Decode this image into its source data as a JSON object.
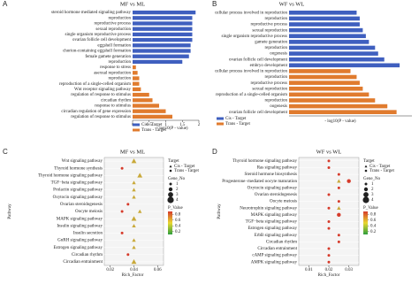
{
  "chart_data": [
    {
      "type": "bar",
      "panel": "A",
      "title": "MF vs ML",
      "x_label": "- log10(P - value)",
      "categories": [
        "steroid hormone mediated signaling pathway",
        "reproduction",
        "reproductive process",
        "sexual reproduction",
        "single organism reproductive process",
        "ovarian follicle cell development",
        "eggshell formation",
        "chorion-containing eggshell formation",
        "female gamete generation",
        "reproduction",
        "response to stress",
        "asexual reproduction",
        "reproduction",
        "reproduction of a single-celled organism",
        "Wnt receptor signaling pathway",
        "regulation of response to stimulus",
        "circadian rhythm",
        "response to stimulus",
        "circadian regulation of gene expression",
        "regulation of response to stimulus"
      ],
      "series": [
        {
          "name": "Cis - Target",
          "color": "#3f5fbf",
          "values": [
            1.9,
            1.8,
            1.8,
            1.8,
            1.8,
            1.8,
            1.75,
            1.75,
            1.7,
            1.5,
            null,
            null,
            null,
            null,
            null,
            null,
            null,
            null,
            null,
            null
          ]
        },
        {
          "name": "Trans - Target",
          "color": "#e07b2e",
          "values": [
            null,
            null,
            null,
            null,
            null,
            null,
            null,
            null,
            null,
            null,
            0.1,
            0.15,
            0.2,
            0.2,
            0.25,
            0.5,
            0.6,
            0.8,
            1.0,
            1.2
          ]
        }
      ],
      "xlim": [
        0,
        2
      ],
      "xticks": [
        0,
        0.5,
        1,
        1.5,
        2
      ]
    },
    {
      "type": "bar",
      "panel": "B",
      "title": "WF vs WL",
      "x_label": "- log10(P - value)",
      "categories": [
        "cellular process involved in reproduction",
        "reproduction",
        "reproductive process",
        "sexual reproduction",
        "single organism reproductive process",
        "gamete generation",
        "reproduction",
        "oogenesis",
        "ovarian follicle cell development",
        "embryo development",
        "cellular process involved in reproduction",
        "reproduction",
        "reproductive process",
        "sexual reproduction",
        "reproduction of a single-celled organism",
        "reproduction",
        "oogenesis",
        "ovarian follicle cell development"
      ],
      "series": [
        {
          "name": "Cis - Target",
          "color": "#3f5fbf",
          "values": [
            2.2,
            2.3,
            2.3,
            2.4,
            2.5,
            2.6,
            2.8,
            2.9,
            3.1,
            3.6,
            null,
            null,
            null,
            null,
            null,
            null,
            null,
            null
          ]
        },
        {
          "name": "Trans - Target",
          "color": "#e07b2e",
          "values": [
            null,
            null,
            null,
            null,
            null,
            null,
            null,
            null,
            null,
            null,
            2.0,
            2.2,
            2.3,
            2.4,
            2.6,
            2.8,
            3.2,
            3.5
          ]
        }
      ],
      "xlim": [
        0,
        4
      ]
    },
    {
      "type": "scatter",
      "panel": "C",
      "title": "MF vs ML",
      "x_label": "Rich_Factor",
      "y_label": "Pathway",
      "categories": [
        "Wnt signaling pathway",
        "Thyroid hormone synthesis",
        "Thyroid hormone signaling pathway",
        "TGF−beta signaling pathway",
        "Prolactin signaling pathway",
        "Oxytocin signaling pathway",
        "Ovarian steroidogenesis",
        "Oocyte meiosis",
        "MAPK signaling pathway",
        "Insulin signaling pathway",
        "Insulin secretion",
        "GnRH signaling pathway",
        "Estrogen signaling pathway",
        "Circadian rhythm",
        "Circadian entrainment"
      ],
      "series": [
        {
          "name": "Cis - Target",
          "shape": "triangle",
          "color": "#c9a93a",
          "values": [
            0.04,
            null,
            0.045,
            0.04,
            0.04,
            0.04,
            null,
            0.045,
            0.04,
            0.04,
            null,
            0.04,
            0.04,
            null,
            0.04
          ],
          "sizes": [
            3,
            null,
            3,
            2,
            2,
            2,
            null,
            2,
            3,
            2,
            null,
            2,
            2,
            null,
            3
          ]
        },
        {
          "name": "Trans - Target",
          "shape": "circle",
          "color": "#d63b2b",
          "values": [
            null,
            0.03,
            null,
            null,
            null,
            null,
            0.035,
            0.03,
            null,
            null,
            0.03,
            null,
            null,
            0.035,
            null
          ],
          "sizes": [
            null,
            1,
            null,
            null,
            null,
            null,
            1,
            1,
            null,
            null,
            1,
            null,
            null,
            1,
            null
          ]
        }
      ],
      "xlim": [
        0.015,
        0.065
      ],
      "xticks": [
        0.02,
        0.04,
        0.06
      ],
      "legend_title": "Target",
      "size_title": "Gene_No",
      "size_ticks": [
        1,
        2,
        3,
        4
      ],
      "color_title": "P_Value",
      "colorbar": [
        "#2e9e3e",
        "#e8d830",
        "#d63b2b"
      ],
      "color_lim": [
        0.1,
        0.9
      ],
      "color_ticks": [
        0.2,
        0.4,
        0.6,
        0.8
      ]
    },
    {
      "type": "scatter",
      "panel": "D",
      "title": "WF vs WL",
      "x_label": "Rich_Factor",
      "y_label": "Pathway",
      "categories": [
        "Thyroid hormone signaling pathway",
        "Ras signaling pathway",
        "Steroid hormone biosynthesis",
        "Progesterone−mediated oocyte maturation",
        "Oxytocin signaling pathway",
        "Ovarian steroidogenesis",
        "Oocyte meiosis",
        "Neurotrophin signaling pathway",
        "MAPK signaling pathway",
        "TGF−beta signaling pathway",
        "Estrogen signaling pathway",
        "ErbB signaling pathway",
        "Circadian rhythm",
        "Circadian entrainment",
        "cAMP signaling pathway",
        "AMPK signaling pathway"
      ],
      "series": [
        {
          "name": "Cis - Target",
          "shape": "triangle",
          "color": "#c9a93a",
          "values": [
            null,
            null,
            null,
            0.025,
            null,
            null,
            null,
            0.025,
            null,
            null,
            null,
            null,
            null,
            null,
            null,
            null
          ],
          "sizes": [
            null,
            null,
            null,
            2,
            null,
            null,
            null,
            2,
            null,
            null,
            null,
            null,
            null,
            null,
            null,
            null
          ]
        },
        {
          "name": "Trans - Target",
          "shape": "circle",
          "color": "#d63b2b",
          "values": [
            0.02,
            0.02,
            0.025,
            0.03,
            0.025,
            0.02,
            0.025,
            0.02,
            0.025,
            0.02,
            0.02,
            0.025,
            0.025,
            0.02,
            0.02,
            0.02
          ],
          "sizes": [
            1,
            1,
            1,
            2,
            1,
            1,
            1,
            1,
            2,
            1,
            1,
            1,
            1,
            1,
            1,
            1
          ]
        }
      ],
      "xlim": [
        0.005,
        0.035
      ],
      "xticks": [
        0.01,
        0.02,
        0.03
      ],
      "legend_title": "Target",
      "size_title": "Gene_No",
      "size_ticks": [
        1,
        2,
        3,
        4
      ],
      "color_title": "P_Value",
      "colorbar": [
        "#2e9e3e",
        "#e8d830",
        "#d63b2b"
      ],
      "color_lim": [
        0.1,
        0.9
      ],
      "color_ticks": [
        0.2,
        0.4,
        0.6,
        0.8
      ]
    }
  ]
}
